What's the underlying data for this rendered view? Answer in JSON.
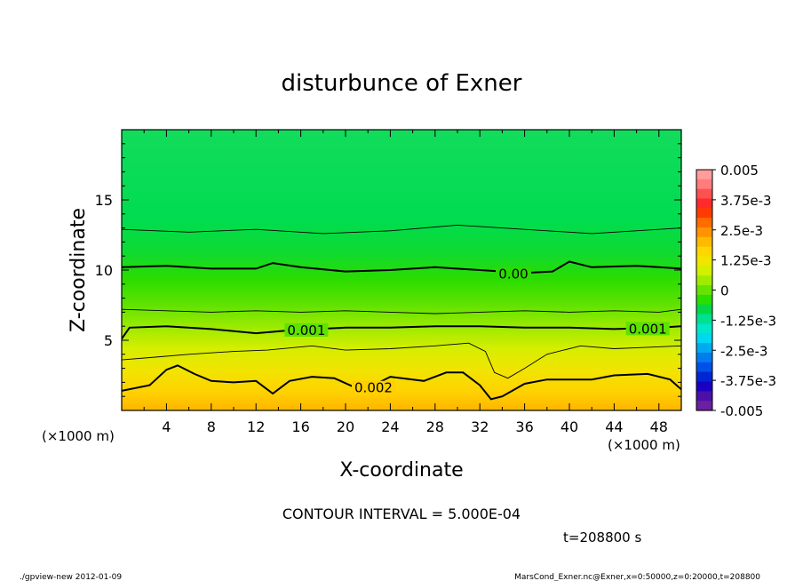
{
  "chart_data": {
    "type": "heatmap",
    "title": "disturbunce of Exner",
    "xlabel": "X-coordinate",
    "ylabel": "Z-coordinate",
    "x_unit_left": "(×1000 m)",
    "x_unit_right": "(×1000 m)",
    "xlim": [
      0,
      50
    ],
    "ylim": [
      0,
      20
    ],
    "x_ticks": [
      4,
      8,
      12,
      16,
      20,
      24,
      28,
      32,
      36,
      40,
      44,
      48
    ],
    "y_ticks": [
      5,
      10,
      15
    ],
    "contour_interval_text": "CONTOUR INTERVAL = 5.000E-04",
    "time_text": "t=208800 s",
    "contour_labels": [
      {
        "text": "0.00",
        "x": 35.0,
        "z": 9.7
      },
      {
        "text": "0.001",
        "x": 16.5,
        "z": 5.7
      },
      {
        "text": "0.001",
        "x": 47.0,
        "z": 5.8
      },
      {
        "text": "0.002",
        "x": 22.5,
        "z": 1.6
      }
    ],
    "contours": [
      {
        "level": 0.0005,
        "major": false,
        "points": [
          [
            0,
            12.9
          ],
          [
            6,
            12.7
          ],
          [
            12,
            12.9
          ],
          [
            18,
            12.6
          ],
          [
            24,
            12.8
          ],
          [
            30,
            13.2
          ],
          [
            36,
            12.9
          ],
          [
            42,
            12.6
          ],
          [
            48,
            12.9
          ],
          [
            50,
            13.0
          ]
        ]
      },
      {
        "level": 0.0,
        "major": true,
        "points": [
          [
            0,
            10.2
          ],
          [
            4,
            10.3
          ],
          [
            8,
            10.1
          ],
          [
            12,
            10.1
          ],
          [
            13.5,
            10.5
          ],
          [
            16,
            10.2
          ],
          [
            20,
            9.9
          ],
          [
            24,
            10.0
          ],
          [
            28,
            10.2
          ],
          [
            32,
            10.0
          ],
          [
            36,
            9.8
          ],
          [
            38.5,
            9.9
          ],
          [
            40,
            10.6
          ],
          [
            42,
            10.2
          ],
          [
            46,
            10.3
          ],
          [
            48,
            10.2
          ],
          [
            50,
            10.1
          ]
        ]
      },
      {
        "level": 0.0005,
        "major": false,
        "points": [
          [
            0,
            7.2
          ],
          [
            4,
            7.1
          ],
          [
            8,
            7.0
          ],
          [
            12,
            7.1
          ],
          [
            16,
            7.0
          ],
          [
            20,
            7.1
          ],
          [
            24,
            7.0
          ],
          [
            28,
            6.9
          ],
          [
            32,
            7.0
          ],
          [
            36,
            7.1
          ],
          [
            40,
            7.0
          ],
          [
            44,
            7.1
          ],
          [
            48,
            7.0
          ],
          [
            50,
            7.2
          ]
        ]
      },
      {
        "level": 0.001,
        "major": true,
        "points": [
          [
            0,
            5.1
          ],
          [
            0.7,
            5.9
          ],
          [
            4,
            6.0
          ],
          [
            8,
            5.8
          ],
          [
            12,
            5.5
          ],
          [
            15,
            5.7
          ],
          [
            20,
            5.9
          ],
          [
            24,
            5.9
          ],
          [
            28,
            6.0
          ],
          [
            32,
            6.0
          ],
          [
            36,
            5.9
          ],
          [
            40,
            5.9
          ],
          [
            44,
            5.8
          ],
          [
            48,
            5.9
          ],
          [
            50,
            6.0
          ]
        ]
      },
      {
        "level": 0.0015,
        "major": false,
        "points": [
          [
            0,
            3.6
          ],
          [
            3,
            3.8
          ],
          [
            6,
            4.0
          ],
          [
            10,
            4.2
          ],
          [
            13,
            4.3
          ],
          [
            17,
            4.6
          ],
          [
            20,
            4.3
          ],
          [
            24,
            4.4
          ],
          [
            28,
            4.6
          ],
          [
            31,
            4.8
          ],
          [
            32.5,
            4.2
          ],
          [
            33.3,
            2.7
          ],
          [
            34.5,
            2.3
          ],
          [
            36,
            3.0
          ],
          [
            38,
            4.0
          ],
          [
            41,
            4.6
          ],
          [
            44,
            4.4
          ],
          [
            47,
            4.5
          ],
          [
            50,
            4.6
          ]
        ]
      },
      {
        "level": 0.002,
        "major": true,
        "points": [
          [
            0,
            1.4
          ],
          [
            2.5,
            1.8
          ],
          [
            4,
            2.9
          ],
          [
            5,
            3.2
          ],
          [
            6.5,
            2.6
          ],
          [
            8,
            2.1
          ],
          [
            10,
            2.0
          ],
          [
            12,
            2.1
          ],
          [
            13.5,
            1.2
          ],
          [
            15,
            2.1
          ],
          [
            17,
            2.4
          ],
          [
            19,
            2.3
          ],
          [
            21.5,
            1.4
          ],
          [
            24,
            2.4
          ],
          [
            27,
            2.1
          ],
          [
            29,
            2.7
          ],
          [
            30.5,
            2.7
          ],
          [
            32,
            1.8
          ],
          [
            33,
            0.8
          ],
          [
            34,
            1.0
          ],
          [
            36,
            1.9
          ],
          [
            38,
            2.2
          ],
          [
            42,
            2.2
          ],
          [
            44,
            2.5
          ],
          [
            47,
            2.6
          ],
          [
            49,
            2.2
          ],
          [
            50,
            1.5
          ]
        ]
      }
    ],
    "colorbar": {
      "labels": [
        "0.005",
        "3.75e-3",
        "2.5e-3",
        "1.25e-3",
        "0",
        "-1.25e-3",
        "-2.5e-3",
        "-3.75e-3",
        "-0.005"
      ],
      "colors_top_to_bottom": [
        "#ff9c9c",
        "#ff7c7c",
        "#ff5050",
        "#ff2a2a",
        "#ff3c00",
        "#ff6c00",
        "#ff9400",
        "#ffba00",
        "#ffd700",
        "#f0e600",
        "#d2f000",
        "#a0ec00",
        "#64e400",
        "#2ade00",
        "#00d84a",
        "#00e090",
        "#00e8c8",
        "#00d8f0",
        "#00aaf0",
        "#007cf0",
        "#0050e8",
        "#0026d4",
        "#1a00c0",
        "#4a10a8",
        "#6a20a0"
      ]
    },
    "footer_left": "./gpview-new  2012-01-09",
    "footer_right": "MarsCond_Exner.nc@Exner,x=0:50000,z=0:20000,t=208800"
  }
}
